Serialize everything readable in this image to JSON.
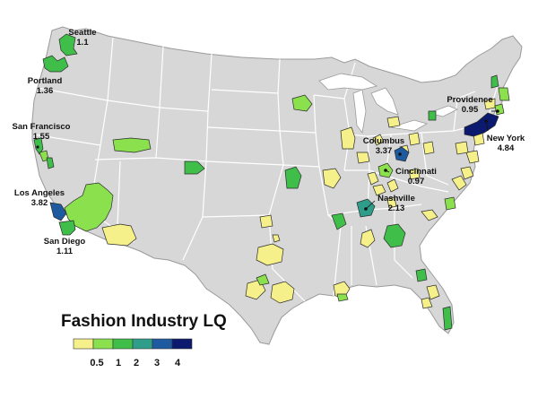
{
  "map": {
    "land_color": "#d7d7d7",
    "border_color": "#ffffff",
    "outline_color": "#9a9a9a"
  },
  "legend": {
    "title": "Fashion Industry LQ",
    "colors": [
      "#f5f08a",
      "#8be04e",
      "#3fbf4a",
      "#2e9e8a",
      "#1e5aa0",
      "#0b1a6e"
    ],
    "ticks": [
      "0.5",
      "1",
      "2",
      "3",
      "4"
    ]
  },
  "labeled_cities": [
    {
      "name": "Seattle",
      "value": "1.1",
      "color": "#3fbf4a"
    },
    {
      "name": "Portland",
      "value": "1.36",
      "color": "#3fbf4a"
    },
    {
      "name": "San Francisco",
      "value": "1.55",
      "color": "#3fbf4a"
    },
    {
      "name": "Los Angeles",
      "value": "3.82",
      "color": "#1e5aa0"
    },
    {
      "name": "San Diego",
      "value": "1.11",
      "color": "#3fbf4a"
    },
    {
      "name": "Columbus",
      "value": "3.37",
      "color": "#1e5aa0"
    },
    {
      "name": "Cincinnati",
      "value": "0.97",
      "color": "#8be04e"
    },
    {
      "name": "Nashville",
      "value": "2.13",
      "color": "#2e9e8a"
    },
    {
      "name": "Providence",
      "value": "0.95",
      "color": "#8be04e"
    },
    {
      "name": "New York",
      "value": "4.84",
      "color": "#0b1a6e"
    }
  ]
}
